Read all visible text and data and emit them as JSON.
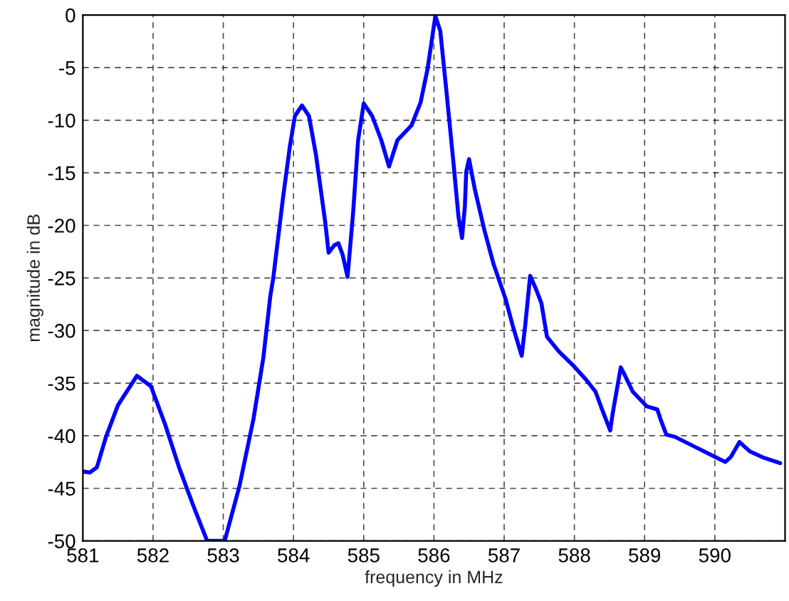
{
  "chart_data": {
    "type": "line",
    "xlabel": "frequency in MHz",
    "ylabel": "magnitude in dB",
    "xlim": [
      581,
      591
    ],
    "ylim": [
      -50,
      0
    ],
    "xticks": [
      581,
      582,
      583,
      584,
      585,
      586,
      587,
      588,
      589,
      590
    ],
    "yticks": [
      -50,
      -45,
      -40,
      -35,
      -30,
      -25,
      -20,
      -15,
      -10,
      -5,
      0
    ],
    "grid": true,
    "line_style": "solid",
    "marker": "none",
    "series": [
      {
        "color": "#0000ff",
        "x": [
          581.0,
          581.1,
          581.2,
          581.33,
          581.5,
          581.77,
          581.97,
          582.17,
          582.37,
          582.57,
          582.77,
          583.02,
          583.23,
          583.43,
          583.57,
          583.67,
          583.71,
          583.85,
          583.95,
          584.02,
          584.12,
          584.22,
          584.32,
          584.45,
          584.5,
          584.58,
          584.64,
          584.7,
          584.77,
          584.85,
          584.92,
          585.0,
          585.12,
          585.25,
          585.36,
          585.48,
          585.68,
          585.81,
          585.91,
          585.98,
          586.02,
          586.09,
          586.18,
          586.28,
          586.35,
          586.4,
          586.44,
          586.46,
          586.5,
          586.58,
          586.72,
          586.85,
          587.02,
          587.12,
          587.2,
          587.25,
          587.3,
          587.37,
          587.45,
          587.53,
          587.61,
          587.78,
          587.98,
          588.17,
          588.3,
          588.4,
          588.51,
          588.54,
          588.66,
          588.7,
          588.83,
          589.03,
          589.18,
          589.23,
          589.31,
          589.43,
          589.76,
          590.0,
          590.15,
          590.23,
          590.35,
          590.5,
          590.7,
          590.93
        ],
        "values": [
          -43.4,
          -43.5,
          -43.0,
          -40.1,
          -37.1,
          -34.3,
          -35.3,
          -38.9,
          -43.0,
          -46.6,
          -50,
          -50,
          -44.8,
          -38.4,
          -32.6,
          -26.7,
          -25.1,
          -17.4,
          -12.4,
          -9.6,
          -8.6,
          -9.6,
          -13.3,
          -19.6,
          -22.6,
          -21.9,
          -21.7,
          -22.8,
          -24.9,
          -18.7,
          -11.9,
          -8.4,
          -9.6,
          -11.9,
          -14.4,
          -11.9,
          -10.5,
          -8.3,
          -5.1,
          -1.9,
          -0.1,
          -1.5,
          -7.4,
          -14.2,
          -19.2,
          -21.2,
          -18.2,
          -14.9,
          -13.7,
          -16.5,
          -20.5,
          -23.7,
          -27.0,
          -29.5,
          -31.3,
          -32.4,
          -29.5,
          -24.8,
          -26.0,
          -27.4,
          -30.6,
          -32.0,
          -33.3,
          -34.7,
          -35.8,
          -37.6,
          -39.5,
          -38.1,
          -33.5,
          -34.0,
          -35.8,
          -37.2,
          -37.5,
          -38.5,
          -39.9,
          -40.1,
          -41.2,
          -42.0,
          -42.5,
          -42.0,
          -40.6,
          -41.5,
          -42.1,
          -42.6
        ]
      }
    ]
  }
}
